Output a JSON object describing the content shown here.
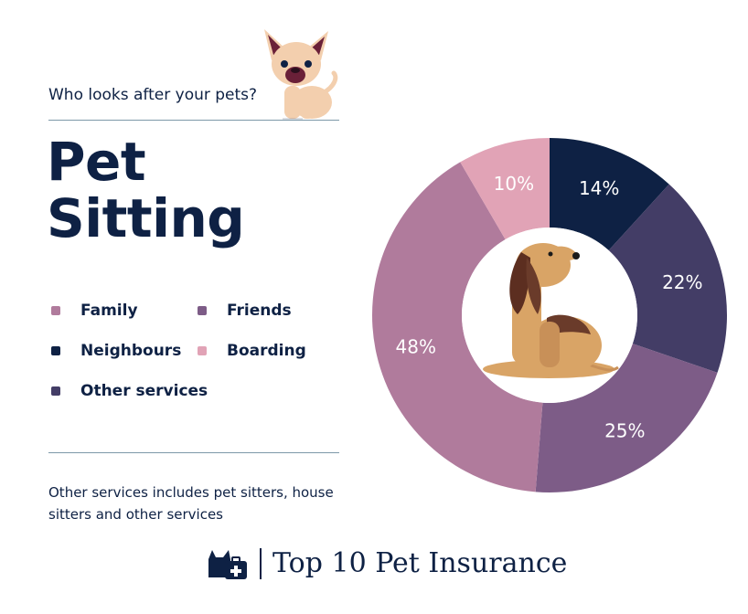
{
  "header": {
    "subtitle": "Who looks after your pets?",
    "title_line1": "Pet",
    "title_line2": "Sitting"
  },
  "legend": [
    {
      "label": "Family",
      "color": "#b07b9c"
    },
    {
      "label": "Friends",
      "color": "#7d5c87"
    },
    {
      "label": "Neighbours",
      "color": "#0e2144"
    },
    {
      "label": "Boarding",
      "color": "#e1a3b6"
    },
    {
      "label": "Other services",
      "color": "#433d66"
    }
  ],
  "note": "Other services includes pet sitters, house sitters and other services",
  "footer": {
    "brand": "Top 10 Pet Insurance"
  },
  "chart_data": {
    "type": "pie",
    "title": "",
    "donut": true,
    "slices": [
      {
        "label": "Neighbours",
        "value": 14,
        "display": "14%",
        "color": "#0e2144"
      },
      {
        "label": "Other services",
        "value": 22,
        "display": "22%",
        "color": "#433d66"
      },
      {
        "label": "Friends",
        "value": 25,
        "display": "25%",
        "color": "#7d5c87"
      },
      {
        "label": "Family",
        "value": 48,
        "display": "48%",
        "color": "#b07b9c"
      },
      {
        "label": "Boarding",
        "value": 10,
        "display": "10%",
        "color": "#e1a3b6"
      }
    ]
  }
}
